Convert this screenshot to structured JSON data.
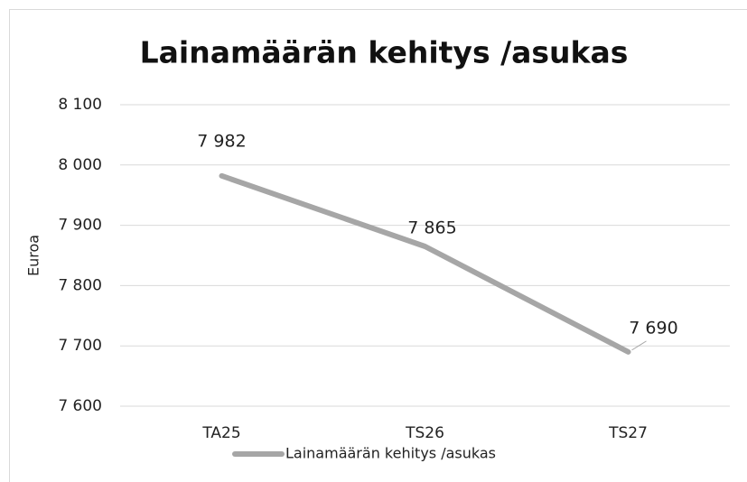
{
  "chart_data": {
    "type": "line",
    "title": "Lainamäärän kehitys /asukas",
    "y_label": "Euroa",
    "categories": [
      "TA25",
      "TS26",
      "TS27"
    ],
    "series": [
      {
        "name": "Lainamäärän kehitys /asukas",
        "color": "#a6a6a6",
        "values": [
          7982,
          7865,
          7690
        ],
        "value_labels": [
          "7 982",
          "7 865",
          "7 690"
        ]
      }
    ],
    "ylim": [
      7600,
      8100
    ],
    "yticks": [
      {
        "value": 7600,
        "label": "7 600"
      },
      {
        "value": 7700,
        "label": "7 700"
      },
      {
        "value": 7800,
        "label": "7 800"
      },
      {
        "value": 7900,
        "label": "7 900"
      },
      {
        "value": 8000,
        "label": "8 000"
      },
      {
        "value": 8100,
        "label": "8 100"
      }
    ],
    "grid": true,
    "legend": "bottom"
  }
}
